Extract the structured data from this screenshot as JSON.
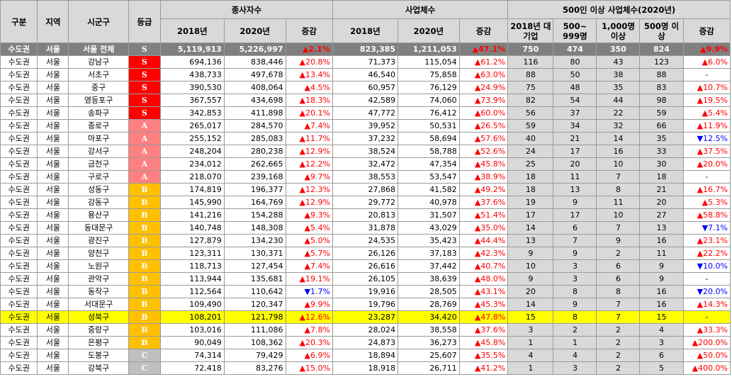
{
  "headers": {
    "gubun": "구분",
    "region": "지역",
    "district": "시군구",
    "grade": "등급",
    "employees": "종사자수",
    "businesses": "사업체수",
    "large": "500인 이상 사업체수(2020년)",
    "y2018": "2018년",
    "y2020": "2020년",
    "change": "증감",
    "large_2018": "2018년 대기업",
    "large_500_999": "500~ 999명",
    "large_1000": "1,000명 이상",
    "large_500plus": "500명 이상",
    "large_change": "증감"
  },
  "colors": {
    "grade_S": "#ff0000",
    "grade_A": "#ff8080",
    "grade_B": "#ffc000",
    "grade_C": "#bfbfbf",
    "up": "#ff0000",
    "down": "#0000ff",
    "highlight": "#ffff00",
    "total_row": "#808080"
  },
  "rows": [
    {
      "gubun": "수도권",
      "region": "서울",
      "district": "서울 전체",
      "grade": "S",
      "e18": "5,119,913",
      "e20": "5,226,997",
      "ec": "▲2.1%",
      "ecd": "up",
      "b18": "823,385",
      "b20": "1,211,053",
      "bc": "▲47.1%",
      "bcd": "up",
      "l18": "750",
      "l500": "474",
      "l1000": "350",
      "ltot": "824",
      "lc": "▲9.9%",
      "lcd": "up",
      "type": "total"
    },
    {
      "gubun": "수도권",
      "region": "서울",
      "district": "강남구",
      "grade": "S",
      "e18": "694,136",
      "e20": "838,446",
      "ec": "▲20.8%",
      "ecd": "up",
      "b18": "71,373",
      "b20": "115,054",
      "bc": "▲61.2%",
      "bcd": "up",
      "l18": "116",
      "l500": "80",
      "l1000": "43",
      "ltot": "123",
      "lc": "▲6.0%",
      "lcd": "up"
    },
    {
      "gubun": "수도권",
      "region": "서울",
      "district": "서초구",
      "grade": "S",
      "e18": "438,733",
      "e20": "497,678",
      "ec": "▲13.4%",
      "ecd": "up",
      "b18": "46,540",
      "b20": "75,858",
      "bc": "▲63.0%",
      "bcd": "up",
      "l18": "88",
      "l500": "50",
      "l1000": "38",
      "ltot": "88",
      "lc": "-",
      "lcd": "zero"
    },
    {
      "gubun": "수도권",
      "region": "서울",
      "district": "중구",
      "grade": "S",
      "e18": "390,530",
      "e20": "408,064",
      "ec": "▲4.5%",
      "ecd": "up",
      "b18": "60,957",
      "b20": "76,129",
      "bc": "▲24.9%",
      "bcd": "up",
      "l18": "75",
      "l500": "48",
      "l1000": "35",
      "ltot": "83",
      "lc": "▲10.7%",
      "lcd": "up"
    },
    {
      "gubun": "수도권",
      "region": "서울",
      "district": "영등포구",
      "grade": "S",
      "e18": "367,557",
      "e20": "434,698",
      "ec": "▲18.3%",
      "ecd": "up",
      "b18": "42,589",
      "b20": "74,060",
      "bc": "▲73.9%",
      "bcd": "up",
      "l18": "82",
      "l500": "54",
      "l1000": "44",
      "ltot": "98",
      "lc": "▲19.5%",
      "lcd": "up"
    },
    {
      "gubun": "수도권",
      "region": "서울",
      "district": "송파구",
      "grade": "S",
      "e18": "342,853",
      "e20": "411,898",
      "ec": "▲20.1%",
      "ecd": "up",
      "b18": "47,772",
      "b20": "76,412",
      "bc": "▲60.0%",
      "bcd": "up",
      "l18": "56",
      "l500": "37",
      "l1000": "22",
      "ltot": "59",
      "lc": "▲5.4%",
      "lcd": "up"
    },
    {
      "gubun": "수도권",
      "region": "서울",
      "district": "종로구",
      "grade": "A",
      "e18": "265,017",
      "e20": "284,570",
      "ec": "▲7.4%",
      "ecd": "up",
      "b18": "39,952",
      "b20": "50,531",
      "bc": "▲26.5%",
      "bcd": "up",
      "l18": "59",
      "l500": "34",
      "l1000": "32",
      "ltot": "66",
      "lc": "▲11.9%",
      "lcd": "up"
    },
    {
      "gubun": "수도권",
      "region": "서울",
      "district": "마포구",
      "grade": "A",
      "e18": "255,152",
      "e20": "285,083",
      "ec": "▲11.7%",
      "ecd": "up",
      "b18": "37,232",
      "b20": "58,694",
      "bc": "▲57.6%",
      "bcd": "up",
      "l18": "40",
      "l500": "21",
      "l1000": "14",
      "ltot": "35",
      "lc": "▼12.5%",
      "lcd": "down"
    },
    {
      "gubun": "수도권",
      "region": "서울",
      "district": "강서구",
      "grade": "A",
      "e18": "248,204",
      "e20": "280,238",
      "ec": "▲12.9%",
      "ecd": "up",
      "b18": "38,524",
      "b20": "58,788",
      "bc": "▲52.6%",
      "bcd": "up",
      "l18": "24",
      "l500": "17",
      "l1000": "16",
      "ltot": "33",
      "lc": "▲37.5%",
      "lcd": "up"
    },
    {
      "gubun": "수도권",
      "region": "서울",
      "district": "금천구",
      "grade": "A",
      "e18": "234,012",
      "e20": "262,665",
      "ec": "▲12.2%",
      "ecd": "up",
      "b18": "32,472",
      "b20": "47,354",
      "bc": "▲45.8%",
      "bcd": "up",
      "l18": "25",
      "l500": "20",
      "l1000": "10",
      "ltot": "30",
      "lc": "▲20.0%",
      "lcd": "up"
    },
    {
      "gubun": "수도권",
      "region": "서울",
      "district": "구로구",
      "grade": "A",
      "e18": "218,070",
      "e20": "239,168",
      "ec": "▲9.7%",
      "ecd": "up",
      "b18": "38,553",
      "b20": "53,547",
      "bc": "▲38.9%",
      "bcd": "up",
      "l18": "18",
      "l500": "11",
      "l1000": "7",
      "ltot": "18",
      "lc": "-",
      "lcd": "zero"
    },
    {
      "gubun": "수도권",
      "region": "서울",
      "district": "성동구",
      "grade": "B",
      "e18": "174,819",
      "e20": "196,377",
      "ec": "▲12.3%",
      "ecd": "up",
      "b18": "27,868",
      "b20": "41,582",
      "bc": "▲49.2%",
      "bcd": "up",
      "l18": "18",
      "l500": "13",
      "l1000": "8",
      "ltot": "21",
      "lc": "▲16.7%",
      "lcd": "up"
    },
    {
      "gubun": "수도권",
      "region": "서울",
      "district": "강동구",
      "grade": "B",
      "e18": "145,990",
      "e20": "164,769",
      "ec": "▲12.9%",
      "ecd": "up",
      "b18": "29,772",
      "b20": "40,978",
      "bc": "▲37.6%",
      "bcd": "up",
      "l18": "19",
      "l500": "9",
      "l1000": "11",
      "ltot": "20",
      "lc": "▲5.3%",
      "lcd": "up"
    },
    {
      "gubun": "수도권",
      "region": "서울",
      "district": "용산구",
      "grade": "B",
      "e18": "141,216",
      "e20": "154,288",
      "ec": "▲9.3%",
      "ecd": "up",
      "b18": "20,813",
      "b20": "31,507",
      "bc": "▲51.4%",
      "bcd": "up",
      "l18": "17",
      "l500": "17",
      "l1000": "10",
      "ltot": "27",
      "lc": "▲58.8%",
      "lcd": "up"
    },
    {
      "gubun": "수도권",
      "region": "서울",
      "district": "동대문구",
      "grade": "B",
      "e18": "140,748",
      "e20": "148,308",
      "ec": "▲5.4%",
      "ecd": "up",
      "b18": "31,878",
      "b20": "43,029",
      "bc": "▲35.0%",
      "bcd": "up",
      "l18": "14",
      "l500": "6",
      "l1000": "7",
      "ltot": "13",
      "lc": "▼7.1%",
      "lcd": "down"
    },
    {
      "gubun": "수도권",
      "region": "서울",
      "district": "광진구",
      "grade": "B",
      "e18": "127,879",
      "e20": "134,230",
      "ec": "▲5.0%",
      "ecd": "up",
      "b18": "24,535",
      "b20": "35,423",
      "bc": "▲44.4%",
      "bcd": "up",
      "l18": "13",
      "l500": "7",
      "l1000": "9",
      "ltot": "16",
      "lc": "▲23.1%",
      "lcd": "up"
    },
    {
      "gubun": "수도권",
      "region": "서울",
      "district": "양천구",
      "grade": "B",
      "e18": "123,311",
      "e20": "130,371",
      "ec": "▲5.7%",
      "ecd": "up",
      "b18": "26,126",
      "b20": "37,183",
      "bc": "▲42.3%",
      "bcd": "up",
      "l18": "9",
      "l500": "9",
      "l1000": "2",
      "ltot": "11",
      "lc": "▲22.2%",
      "lcd": "up"
    },
    {
      "gubun": "수도권",
      "region": "서울",
      "district": "노원구",
      "grade": "B",
      "e18": "118,713",
      "e20": "127,454",
      "ec": "▲7.4%",
      "ecd": "up",
      "b18": "26,616",
      "b20": "37,442",
      "bc": "▲40.7%",
      "bcd": "up",
      "l18": "10",
      "l500": "3",
      "l1000": "6",
      "ltot": "9",
      "lc": "▼10.0%",
      "lcd": "down"
    },
    {
      "gubun": "수도권",
      "region": "서울",
      "district": "관악구",
      "grade": "B",
      "e18": "113,944",
      "e20": "135,681",
      "ec": "▲19.1%",
      "ecd": "up",
      "b18": "26,105",
      "b20": "38,639",
      "bc": "▲48.0%",
      "bcd": "up",
      "l18": "9",
      "l500": "3",
      "l1000": "6",
      "ltot": "9",
      "lc": "-",
      "lcd": "zero"
    },
    {
      "gubun": "수도권",
      "region": "서울",
      "district": "동작구",
      "grade": "B",
      "e18": "112,564",
      "e20": "110,642",
      "ec": "▼1.7%",
      "ecd": "down",
      "b18": "19,916",
      "b20": "28,505",
      "bc": "▲43.1%",
      "bcd": "up",
      "l18": "20",
      "l500": "8",
      "l1000": "8",
      "ltot": "16",
      "lc": "▼20.0%",
      "lcd": "down"
    },
    {
      "gubun": "수도권",
      "region": "서울",
      "district": "서대문구",
      "grade": "B",
      "e18": "109,490",
      "e20": "120,347",
      "ec": "▲9.9%",
      "ecd": "up",
      "b18": "19,796",
      "b20": "28,769",
      "bc": "▲45.3%",
      "bcd": "up",
      "l18": "14",
      "l500": "9",
      "l1000": "7",
      "ltot": "16",
      "lc": "▲14.3%",
      "lcd": "up"
    },
    {
      "gubun": "수도권",
      "region": "서울",
      "district": "성북구",
      "grade": "B",
      "e18": "108,201",
      "e20": "121,798",
      "ec": "▲12.6%",
      "ecd": "up",
      "b18": "23,287",
      "b20": "34,420",
      "bc": "▲47.8%",
      "bcd": "up",
      "l18": "15",
      "l500": "8",
      "l1000": "7",
      "ltot": "15",
      "lc": "-",
      "lcd": "zero",
      "type": "hl"
    },
    {
      "gubun": "수도권",
      "region": "서울",
      "district": "중랑구",
      "grade": "B",
      "e18": "103,016",
      "e20": "111,086",
      "ec": "▲7.8%",
      "ecd": "up",
      "b18": "28,024",
      "b20": "38,558",
      "bc": "▲37.6%",
      "bcd": "up",
      "l18": "3",
      "l500": "2",
      "l1000": "2",
      "ltot": "4",
      "lc": "▲33.3%",
      "lcd": "up"
    },
    {
      "gubun": "수도권",
      "region": "서울",
      "district": "은평구",
      "grade": "B",
      "e18": "90,049",
      "e20": "108,362",
      "ec": "▲20.3%",
      "ecd": "up",
      "b18": "24,873",
      "b20": "36,273",
      "bc": "▲45.8%",
      "bcd": "up",
      "l18": "1",
      "l500": "1",
      "l1000": "2",
      "ltot": "3",
      "lc": "▲200.0%",
      "lcd": "up"
    },
    {
      "gubun": "수도권",
      "region": "서울",
      "district": "도봉구",
      "grade": "C",
      "e18": "74,314",
      "e20": "79,429",
      "ec": "▲6.9%",
      "ecd": "up",
      "b18": "18,894",
      "b20": "25,607",
      "bc": "▲35.5%",
      "bcd": "up",
      "l18": "4",
      "l500": "4",
      "l1000": "2",
      "ltot": "6",
      "lc": "▲50.0%",
      "lcd": "up"
    },
    {
      "gubun": "수도권",
      "region": "서울",
      "district": "강북구",
      "grade": "C",
      "e18": "72,418",
      "e20": "83,276",
      "ec": "▲15.0%",
      "ecd": "up",
      "b18": "18,918",
      "b20": "26,711",
      "bc": "▲41.2%",
      "bcd": "up",
      "l18": "1",
      "l500": "3",
      "l1000": "2",
      "ltot": "5",
      "lc": "▲400.0%",
      "lcd": "up"
    }
  ]
}
